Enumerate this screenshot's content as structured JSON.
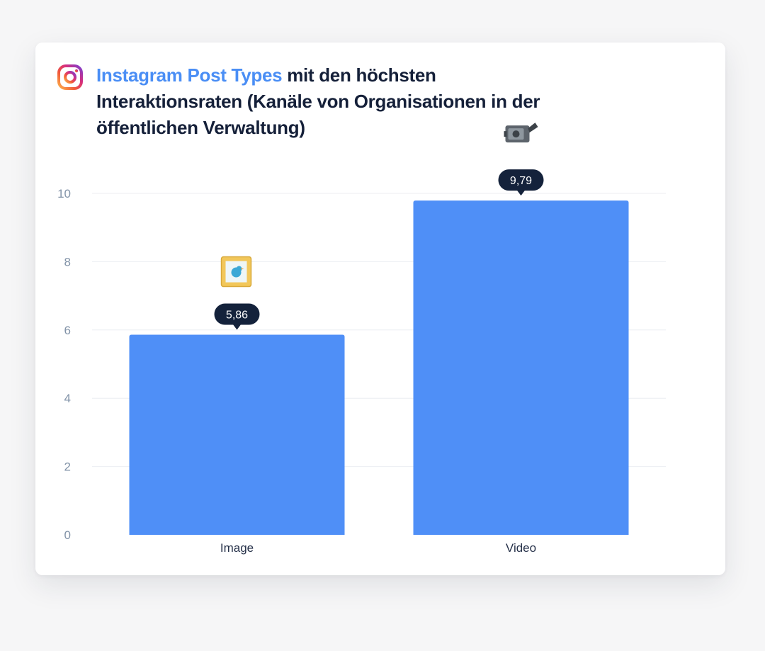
{
  "title": {
    "highlight": "Instagram Post Types",
    "rest": " mit den höchsten Interaktionsraten (Kanäle von Organisationen in der öffentlichen Verwaltung)"
  },
  "colors": {
    "bar": "#4f8ff7",
    "title_highlight": "#4a8ef5",
    "title_text": "#152039",
    "tooltip": "#14223b"
  },
  "chart_data": {
    "type": "bar",
    "title": "Instagram Post Types mit den höchsten Interaktionsraten (Kanäle von Organisationen in der öffentlichen Verwaltung)",
    "categories": [
      "Image",
      "Video"
    ],
    "values": [
      5.86,
      9.79
    ],
    "value_labels": [
      "5,86",
      "9,79"
    ],
    "category_icons": [
      "framed-picture-icon",
      "video-camera-icon"
    ],
    "yticks": [
      0,
      2,
      4,
      6,
      8,
      10
    ],
    "ylim": [
      0,
      10
    ],
    "grid": true,
    "legend": "none"
  }
}
